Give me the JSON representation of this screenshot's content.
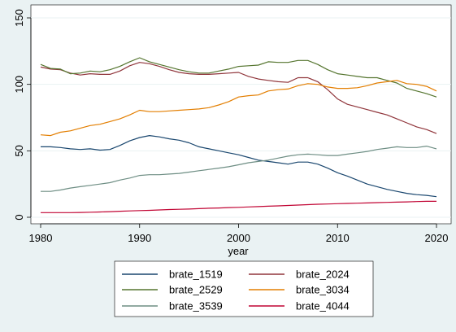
{
  "chart_data": {
    "type": "line",
    "xlabel": "year",
    "ylabel": "",
    "xlim": [
      1980,
      2020
    ],
    "ylim": [
      0,
      150
    ],
    "xticks": [
      1980,
      1990,
      2000,
      2010,
      2020
    ],
    "yticks": [
      0,
      50,
      100,
      150
    ],
    "legend_position": "bottom",
    "x": [
      1980,
      1981,
      1982,
      1983,
      1984,
      1985,
      1986,
      1987,
      1988,
      1989,
      1990,
      1991,
      1992,
      1993,
      1994,
      1995,
      1996,
      1997,
      1998,
      1999,
      2000,
      2001,
      2002,
      2003,
      2004,
      2005,
      2006,
      2007,
      2008,
      2009,
      2010,
      2011,
      2012,
      2013,
      2014,
      2015,
      2016,
      2017,
      2018,
      2019,
      2020
    ],
    "series": [
      {
        "name": "brate_1519",
        "color": "#1a476f",
        "values": [
          53,
          53,
          52.5,
          51.5,
          51,
          51.5,
          50.5,
          51,
          54,
          57.5,
          60,
          61.5,
          60.5,
          59,
          58,
          56,
          53,
          51.5,
          50,
          48.5,
          47,
          45,
          43,
          42,
          41,
          40,
          41.5,
          41.5,
          40,
          37,
          33.5,
          31,
          28,
          25,
          23,
          21,
          19.5,
          18,
          17,
          16.5,
          15.5
        ]
      },
      {
        "name": "brate_2024",
        "color": "#90353b",
        "values": [
          113,
          111.5,
          111,
          108.5,
          107,
          108,
          107.5,
          107.5,
          110,
          114,
          116.5,
          115.5,
          113.5,
          111,
          109,
          108,
          107.5,
          107.5,
          108,
          108.5,
          109,
          106,
          104,
          103,
          102,
          101.5,
          105,
          105,
          102,
          96,
          89,
          85,
          83,
          81,
          79,
          77,
          74,
          71,
          68,
          66,
          63
        ]
      },
      {
        "name": "brate_2529",
        "color": "#55752f",
        "values": [
          115,
          112,
          111.5,
          108,
          108.5,
          110,
          109.5,
          111,
          113.5,
          117,
          120,
          117,
          115,
          113,
          111,
          109.5,
          108.5,
          108.5,
          110,
          111.5,
          113.5,
          114,
          114.5,
          117,
          116.5,
          116.5,
          118,
          118,
          115,
          111,
          108,
          107,
          106,
          105,
          105,
          103,
          101,
          97,
          95,
          93,
          90.5
        ]
      },
      {
        "name": "brate_3034",
        "color": "#e37e00",
        "values": [
          62,
          61.5,
          64,
          65,
          67,
          69,
          70,
          72,
          74,
          77,
          80.5,
          79.5,
          79.5,
          80,
          80.5,
          81,
          81.5,
          82.5,
          84.5,
          87,
          90.5,
          91.5,
          92,
          95,
          96,
          96.5,
          99,
          100.5,
          100,
          98,
          97,
          97,
          97.5,
          99,
          101,
          102,
          103,
          100.5,
          100,
          98.5,
          95
        ]
      },
      {
        "name": "brate_3539",
        "color": "#6e8e84",
        "values": [
          19.5,
          19.5,
          20.5,
          22,
          23,
          24,
          25,
          26,
          28,
          29.5,
          31.5,
          32,
          32,
          32.5,
          33,
          34,
          35,
          36,
          37,
          38,
          39.5,
          41,
          42,
          43,
          44.5,
          46,
          47,
          47.5,
          47,
          46.5,
          46.5,
          47.5,
          48.5,
          49.5,
          51,
          52,
          53,
          52.5,
          52.5,
          53.5,
          51.5
        ]
      },
      {
        "name": "brate_4044",
        "color": "#c10534",
        "values": [
          3.5,
          3.5,
          3.5,
          3.5,
          3.6,
          3.8,
          4,
          4.2,
          4.5,
          4.8,
          5,
          5.2,
          5.5,
          5.8,
          6,
          6.2,
          6.5,
          6.8,
          7,
          7.3,
          7.5,
          7.8,
          8,
          8.3,
          8.6,
          8.9,
          9.2,
          9.5,
          9.8,
          10,
          10.2,
          10.4,
          10.6,
          10.8,
          11,
          11.2,
          11.4,
          11.6,
          11.8,
          12,
          12
        ]
      }
    ]
  }
}
